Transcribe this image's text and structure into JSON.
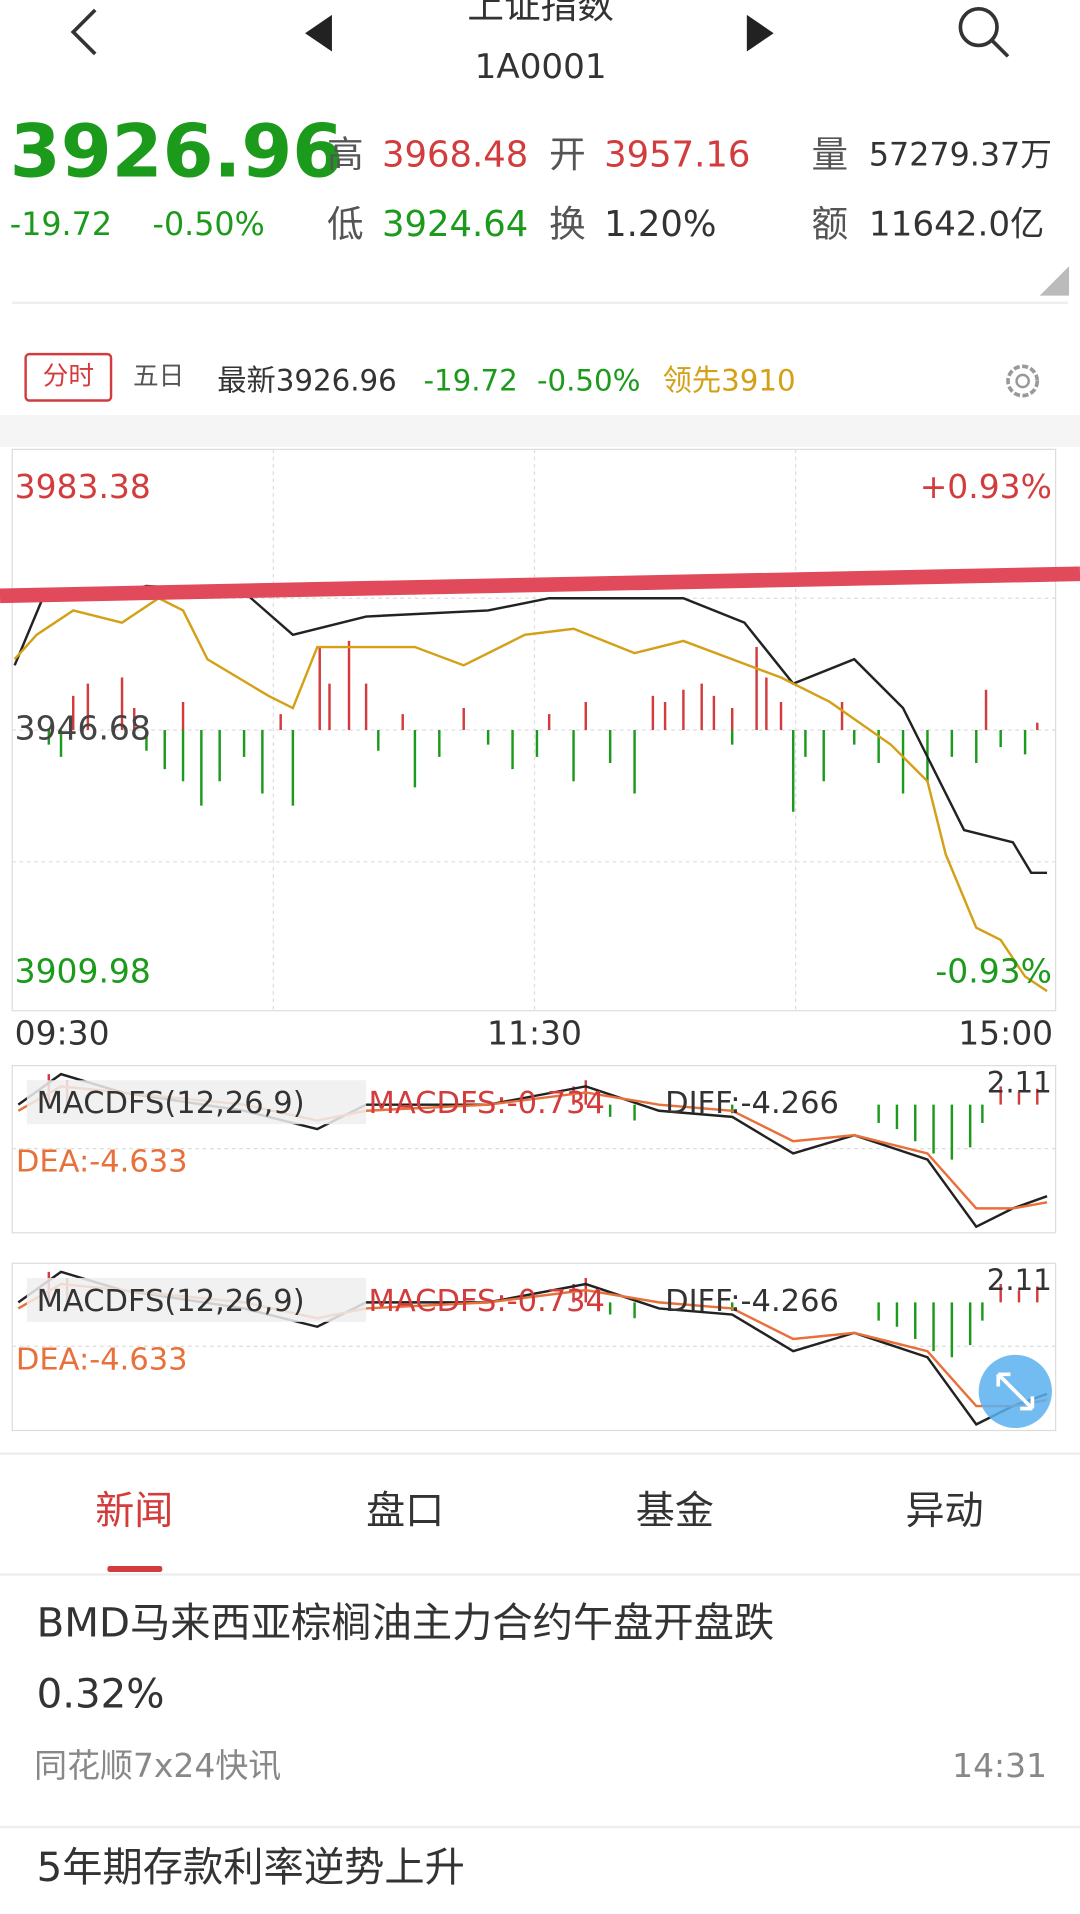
{
  "header": {
    "title": "上证指数",
    "code": "1A0001"
  },
  "quote": {
    "price": "3926.96",
    "change": "-19.72",
    "percent": "-0.50%",
    "high_label": "高",
    "high": "3968.48",
    "open_label": "开",
    "open": "3957.16",
    "low_label": "低",
    "low": "3924.64",
    "turnover_label": "换",
    "turnover": "1.20%",
    "volume_label": "量",
    "volume": "57279.37万",
    "amount_label": "额",
    "amount": "11642.0亿"
  },
  "tabs": [
    "分时",
    "五日"
  ],
  "summary": {
    "latest": "最新3926.96",
    "change": "-19.72",
    "percent": "-0.50%",
    "lead": "领先3910"
  },
  "chart": {
    "top": "3983.38",
    "mid": "3946.68",
    "bottom": "3909.98",
    "top_pct": "+0.93%",
    "bottom_pct": "-0.93%",
    "times": [
      "09:30",
      "11:30",
      "15:00"
    ]
  },
  "macd": {
    "name": "MACDFS(12,26,9)",
    "macdfs": "MACDFS:-0.734",
    "diff": "DIFF:-4.266",
    "dea": "DEA:-4.633",
    "max": "2.11"
  },
  "nav": [
    "新闻",
    "盘口",
    "基金",
    "异动"
  ],
  "news": [
    {
      "title_line1": "BMD马来西亚棕榈油主力合约午盘开盘跌",
      "title_line2": "0.32%",
      "source": "同花顺7x24快讯",
      "time": "14:31"
    },
    {
      "title_line1": "5年期存款利率逆势上升"
    }
  ]
}
